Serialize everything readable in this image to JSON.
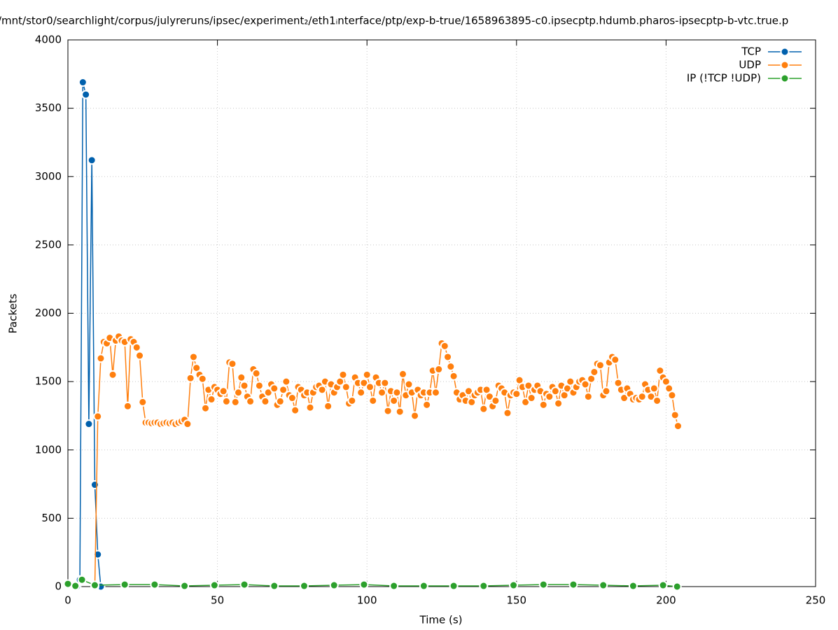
{
  "chart_data": {
    "type": "line",
    "title": "/mnt/stor0/searchlight/corpus/julyreruns/ipsec/experiment₂/eth1ᵢnterface/ptp/exp-b-true/1658963895-c0.ipsecptp.hdumb.pharos-ipsecptp-b-vtc.true.p",
    "xlabel": "Time (s)",
    "ylabel": "Packets",
    "xlim": [
      0,
      250
    ],
    "ylim": [
      0,
      4000
    ],
    "xticks": [
      0,
      50,
      100,
      150,
      200,
      250
    ],
    "yticks": [
      0,
      500,
      1000,
      1500,
      2000,
      2500,
      3000,
      3500,
      4000
    ],
    "grid": true,
    "legend": "top-right",
    "series": [
      {
        "name": "TCP",
        "color": "#0060ad",
        "x": [
          3,
          4,
          5,
          6,
          7,
          8,
          9,
          10,
          11
        ],
        "values": [
          0,
          50,
          3690,
          3600,
          1190,
          3120,
          745,
          235,
          0
        ]
      },
      {
        "name": "UDP",
        "color": "#ff7f0e",
        "x": [
          9,
          10,
          11,
          12,
          13,
          14,
          15,
          16,
          17,
          18,
          19,
          20,
          21,
          22,
          23,
          24,
          25,
          26,
          27,
          28,
          29,
          30,
          31,
          32,
          33,
          34,
          35,
          36,
          37,
          38,
          39,
          40,
          41,
          42,
          43,
          44,
          45,
          46,
          47,
          48,
          49,
          50,
          51,
          52,
          53,
          54,
          55,
          56,
          57,
          58,
          59,
          60,
          61,
          62,
          63,
          64,
          65,
          66,
          67,
          68,
          69,
          70,
          71,
          72,
          73,
          74,
          75,
          76,
          77,
          78,
          79,
          80,
          81,
          82,
          83,
          84,
          85,
          86,
          87,
          88,
          89,
          90,
          91,
          92,
          93,
          94,
          95,
          96,
          97,
          98,
          99,
          100,
          101,
          102,
          103,
          104,
          105,
          106,
          107,
          108,
          109,
          110,
          111,
          112,
          113,
          114,
          115,
          116,
          117,
          118,
          119,
          120,
          121,
          122,
          123,
          124,
          125,
          126,
          127,
          128,
          129,
          130,
          131,
          132,
          133,
          134,
          135,
          136,
          137,
          138,
          139,
          140,
          141,
          142,
          143,
          144,
          145,
          146,
          147,
          148,
          149,
          150,
          151,
          152,
          153,
          154,
          155,
          156,
          157,
          158,
          159,
          160,
          161,
          162,
          163,
          164,
          165,
          166,
          167,
          168,
          169,
          170,
          171,
          172,
          173,
          174,
          175,
          176,
          177,
          178,
          179,
          180,
          181,
          182,
          183,
          184,
          185,
          186,
          187,
          188,
          189,
          190,
          191,
          192,
          193,
          194,
          195,
          196,
          197,
          198,
          199,
          200,
          201,
          202,
          203,
          204
        ],
        "values": [
          0,
          1245,
          1670,
          1790,
          1780,
          1820,
          1550,
          1800,
          1830,
          1800,
          1790,
          1320,
          1810,
          1790,
          1750,
          1690,
          1350,
          1200,
          1200,
          1195,
          1200,
          1200,
          1190,
          1195,
          1200,
          1195,
          1200,
          1190,
          1200,
          1210,
          1220,
          1190,
          1525,
          1680,
          1600,
          1550,
          1520,
          1305,
          1440,
          1370,
          1460,
          1440,
          1410,
          1430,
          1355,
          1640,
          1630,
          1350,
          1420,
          1530,
          1470,
          1390,
          1355,
          1590,
          1560,
          1470,
          1390,
          1355,
          1420,
          1480,
          1450,
          1330,
          1355,
          1440,
          1500,
          1400,
          1380,
          1290,
          1460,
          1440,
          1400,
          1420,
          1310,
          1420,
          1460,
          1470,
          1440,
          1500,
          1320,
          1480,
          1420,
          1460,
          1500,
          1550,
          1460,
          1340,
          1360,
          1530,
          1490,
          1420,
          1490,
          1550,
          1460,
          1360,
          1530,
          1490,
          1420,
          1490,
          1285,
          1430,
          1360,
          1420,
          1280,
          1555,
          1400,
          1480,
          1420,
          1250,
          1440,
          1400,
          1420,
          1330,
          1420,
          1580,
          1420,
          1590,
          1780,
          1760,
          1680,
          1610,
          1540,
          1420,
          1370,
          1400,
          1360,
          1430,
          1350,
          1400,
          1420,
          1440,
          1300,
          1440,
          1390,
          1320,
          1360,
          1470,
          1450,
          1420,
          1270,
          1400,
          1420,
          1410,
          1510,
          1460,
          1350,
          1470,
          1380,
          1440,
          1470,
          1430,
          1330,
          1410,
          1390,
          1460,
          1430,
          1340,
          1470,
          1400,
          1450,
          1500,
          1420,
          1460,
          1500,
          1510,
          1480,
          1390,
          1520,
          1570,
          1630,
          1620,
          1400,
          1430,
          1640,
          1680,
          1660,
          1490,
          1440,
          1380,
          1450,
          1410,
          1370,
          1380,
          1370,
          1390,
          1480,
          1440,
          1390,
          1450,
          1360,
          1580,
          1530,
          1500,
          1450,
          1400,
          1255,
          1175
        ]
      },
      {
        "name": "IP (!TCP  !UDP)",
        "color": "#2ca02c",
        "x": [
          0,
          2.5,
          4.7,
          9,
          19,
          29,
          39,
          49,
          59,
          69,
          79,
          89,
          99,
          109,
          119,
          129,
          139,
          149,
          159,
          169,
          179,
          189,
          199,
          203.7
        ],
        "values": [
          20,
          5,
          50,
          10,
          15,
          15,
          5,
          10,
          15,
          5,
          5,
          10,
          15,
          5,
          5,
          5,
          5,
          10,
          15,
          15,
          10,
          5,
          10,
          0
        ]
      }
    ]
  }
}
